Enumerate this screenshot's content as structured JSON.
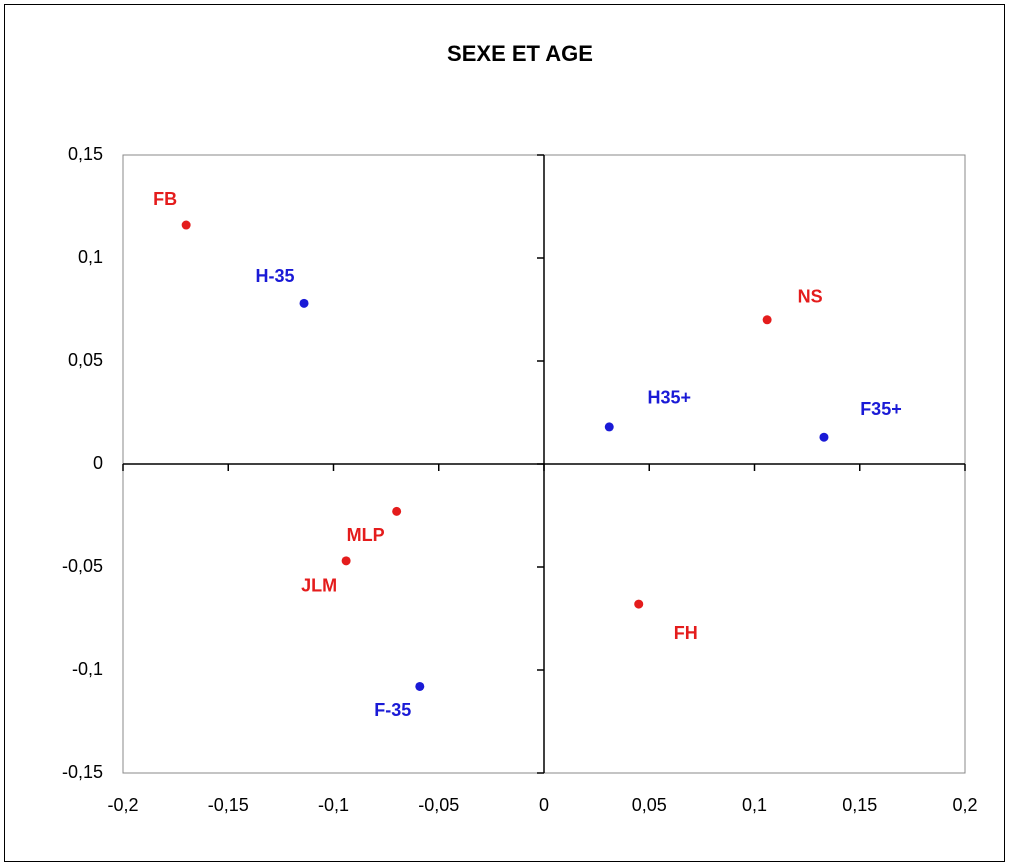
{
  "chart_data": {
    "type": "scatter",
    "title": "SEXE ET AGE",
    "series": [
      {
        "color": "#e41c1c",
        "labels": [
          "FB",
          "NS",
          "MLP",
          "JLM",
          "FH"
        ],
        "x": [
          -0.17,
          0.106,
          -0.07,
          -0.094,
          0.045
        ],
        "values": [
          0.116,
          0.07,
          -0.023,
          -0.047,
          -0.068
        ]
      },
      {
        "color": "#1a1ad6",
        "labels": [
          "H-35",
          "H35+",
          "F35+",
          "F-35"
        ],
        "x": [
          -0.114,
          0.031,
          0.133,
          -0.059
        ],
        "values": [
          0.078,
          0.018,
          0.013,
          -0.108
        ]
      }
    ],
    "xlim": [
      -0.2,
      0.2
    ],
    "xticks": [
      {
        "value": -0.2,
        "label": "-0,2"
      },
      {
        "value": -0.15,
        "label": "-0,15"
      },
      {
        "value": -0.1,
        "label": "-0,1"
      },
      {
        "value": -0.05,
        "label": "-0,05"
      },
      0,
      {
        "value": 0.05,
        "label": "0,05"
      },
      {
        "value": 0.1,
        "label": "0,1"
      },
      {
        "value": 0.15,
        "label": "0,15"
      },
      {
        "value": 0.2,
        "label": "0,2"
      }
    ],
    "ylim": [
      -0.15,
      0.15
    ],
    "yticks": [
      {
        "value": -0.15,
        "label": "-0,15"
      },
      {
        "value": -0.1,
        "label": "-0,1"
      },
      {
        "value": -0.05,
        "label": "-0,05"
      },
      0,
      {
        "value": 0.05,
        "label": "0,05"
      },
      {
        "value": 0.1,
        "label": "0,1"
      },
      {
        "value": 0.15,
        "label": "0,15"
      }
    ]
  }
}
